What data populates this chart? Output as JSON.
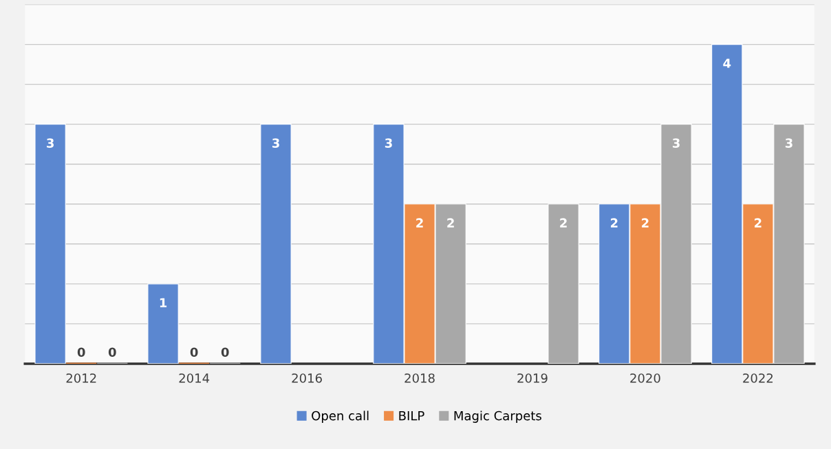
{
  "chart_data": {
    "type": "bar",
    "categories": [
      "2012",
      "2014",
      "2016",
      "2018",
      "2019",
      "2020",
      "2022"
    ],
    "series": [
      {
        "name": "Open call",
        "color": "#5b87d0",
        "values": [
          3,
          1,
          3,
          3,
          null,
          2,
          4
        ]
      },
      {
        "name": "BILP",
        "color": "#ee8c48",
        "values": [
          0,
          0,
          null,
          2,
          null,
          2,
          2
        ]
      },
      {
        "name": "Magic Carpets",
        "color": "#a8a8a8",
        "values": [
          0,
          0,
          null,
          2,
          2,
          3,
          3
        ]
      }
    ],
    "ylim": [
      0,
      4.5
    ],
    "yticks": [
      {
        "value": 0,
        "label": null
      },
      {
        "value": 0.5,
        "label": null
      },
      {
        "value": 1,
        "label": null
      },
      {
        "value": 1.5,
        "label": null
      },
      {
        "value": 2,
        "label": null
      },
      {
        "value": 2.5,
        "label": null
      },
      {
        "value": 3,
        "label": null
      },
      {
        "value": 3.5,
        "label": null
      },
      {
        "value": 4,
        "label": null
      },
      {
        "value": 4.5,
        "label": null
      }
    ],
    "tick_labels": "x",
    "grid": "y",
    "legend": "bottom",
    "data_labels": true
  }
}
